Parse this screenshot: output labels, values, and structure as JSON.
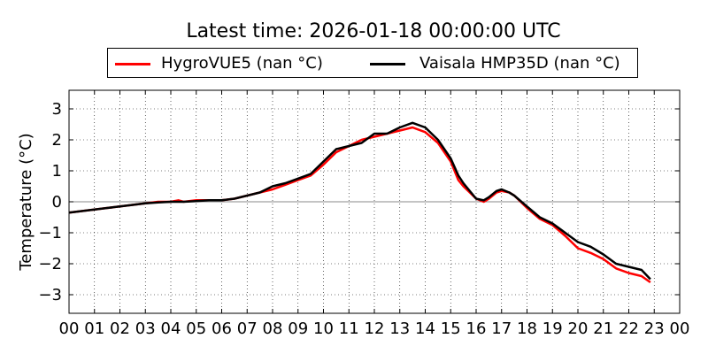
{
  "chart_data": {
    "type": "line",
    "title": "Latest time: 2026-01-18 00:00:00 UTC",
    "ylabel": "Temperature (°C)",
    "xlabel": "",
    "xlim": [
      0,
      24
    ],
    "ylim": [
      -3.6,
      3.6
    ],
    "x_tick_values": [
      0,
      1,
      2,
      3,
      4,
      5,
      6,
      7,
      8,
      9,
      10,
      11,
      12,
      13,
      14,
      15,
      16,
      17,
      18,
      19,
      20,
      21,
      22,
      23,
      24
    ],
    "x_tick_labels": [
      "00",
      "01",
      "02",
      "03",
      "04",
      "05",
      "06",
      "07",
      "08",
      "09",
      "10",
      "11",
      "12",
      "13",
      "14",
      "15",
      "16",
      "17",
      "18",
      "19",
      "20",
      "21",
      "22",
      "23",
      "00"
    ],
    "y_tick_values": [
      -3,
      -2,
      -1,
      0,
      1,
      2,
      3
    ],
    "y_tick_labels": [
      "−3",
      "−2",
      "−1",
      "0",
      "1",
      "2",
      "3"
    ],
    "grid": true,
    "zero_line": true,
    "legend_position": "top",
    "series": [
      {
        "name": "HygroVUE5 (nan °C)",
        "color": "#ff0000",
        "x": [
          0,
          0.5,
          1,
          1.5,
          2,
          2.5,
          3,
          3.5,
          4,
          4.3,
          4.5,
          5,
          5.5,
          6,
          6.5,
          7,
          7.5,
          8,
          8.5,
          9,
          9.5,
          10,
          10.5,
          11,
          11.5,
          12,
          12.5,
          13,
          13.5,
          14,
          14.5,
          15,
          15.3,
          15.5,
          16,
          16.3,
          16.5,
          16.8,
          17,
          17.3,
          17.5,
          18,
          18.5,
          19,
          19.5,
          20,
          20.5,
          21,
          21.5,
          22,
          22.5,
          22.85
        ],
        "y": [
          -0.35,
          -0.3,
          -0.25,
          -0.2,
          -0.15,
          -0.1,
          -0.05,
          0,
          0.0,
          0.05,
          0.0,
          0.05,
          0.05,
          0.05,
          0.1,
          0.2,
          0.3,
          0.4,
          0.55,
          0.7,
          0.85,
          1.2,
          1.6,
          1.8,
          2.0,
          2.1,
          2.2,
          2.3,
          2.4,
          2.25,
          1.9,
          1.3,
          0.7,
          0.5,
          0.1,
          0.0,
          0.1,
          0.3,
          0.35,
          0.3,
          0.2,
          -0.2,
          -0.55,
          -0.75,
          -1.1,
          -1.5,
          -1.65,
          -1.85,
          -2.15,
          -2.3,
          -2.4,
          -2.6
        ]
      },
      {
        "name": "Vaisala HMP35D (nan °C)",
        "color": "#000000",
        "x": [
          0,
          0.5,
          1,
          1.5,
          2,
          2.5,
          3,
          3.5,
          4,
          4.5,
          5,
          5.5,
          6,
          6.5,
          7,
          7.5,
          8,
          8.5,
          9,
          9.5,
          10,
          10.5,
          11,
          11.5,
          12,
          12.5,
          13,
          13.5,
          14,
          14.5,
          15,
          15.3,
          15.5,
          16,
          16.3,
          16.5,
          16.8,
          17,
          17.3,
          17.5,
          18,
          18.5,
          19,
          19.5,
          20,
          20.5,
          21,
          21.5,
          22,
          22.5,
          22.85
        ],
        "y": [
          -0.35,
          -0.3,
          -0.25,
          -0.2,
          -0.15,
          -0.1,
          -0.05,
          -0.02,
          0.0,
          0.0,
          0.02,
          0.05,
          0.05,
          0.1,
          0.2,
          0.3,
          0.5,
          0.6,
          0.75,
          0.9,
          1.3,
          1.7,
          1.8,
          1.9,
          2.2,
          2.2,
          2.4,
          2.55,
          2.4,
          2.0,
          1.4,
          0.85,
          0.6,
          0.1,
          0.05,
          0.15,
          0.35,
          0.4,
          0.3,
          0.2,
          -0.15,
          -0.5,
          -0.7,
          -1.0,
          -1.3,
          -1.45,
          -1.7,
          -2.0,
          -2.1,
          -2.2,
          -2.5
        ]
      }
    ]
  }
}
